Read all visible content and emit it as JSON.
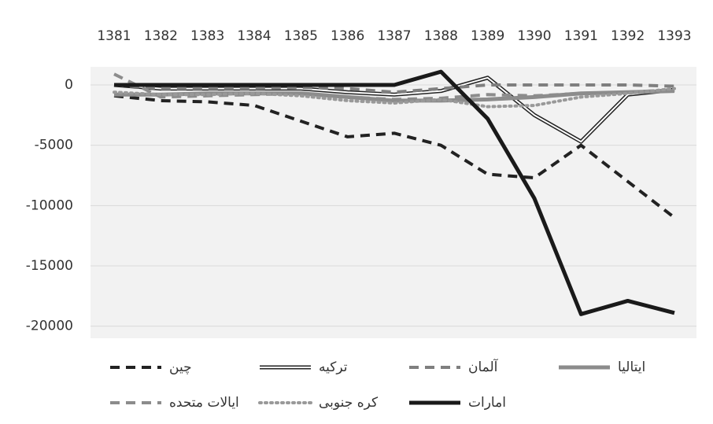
{
  "chart_data": {
    "type": "line",
    "categories": [
      "1381",
      "1382",
      "1383",
      "1384",
      "1385",
      "1386",
      "1387",
      "1388",
      "1389",
      "1390",
      "1391",
      "1392",
      "1393"
    ],
    "ylim": [
      -21000,
      1500
    ],
    "yticks": [
      0,
      -5000,
      -10000,
      -15000,
      -20000
    ],
    "grid": true,
    "series": [
      {
        "name": "چین",
        "color": "#222222",
        "line_style": "dashed",
        "values": [
          -900,
          -1300,
          -1400,
          -1700,
          -3000,
          -4300,
          -4000,
          -5000,
          -7400,
          -7700,
          -5000,
          -8000,
          -11000
        ]
      },
      {
        "name": "ترکیه",
        "color": "#222222",
        "line_style": "double",
        "values": [
          0,
          -300,
          -300,
          -300,
          -300,
          -600,
          -800,
          -500,
          600,
          -2500,
          -4700,
          -800,
          -400
        ]
      },
      {
        "name": "آلمان",
        "color": "#7f7f7f",
        "line_style": "dashed",
        "values": [
          0,
          -300,
          -300,
          -300,
          -200,
          -300,
          -600,
          -300,
          0,
          0,
          0,
          0,
          -100
        ]
      },
      {
        "name": "ایتالیا",
        "color": "#8c8c8c",
        "line_style": "thick",
        "values": [
          -800,
          -800,
          -700,
          -700,
          -700,
          -1000,
          -1300,
          -1300,
          -1200,
          -1000,
          -700,
          -600,
          -500
        ]
      },
      {
        "name": "ایالات متحده",
        "color": "#8c8c8c",
        "line_style": "dashed",
        "values": [
          900,
          -1000,
          -900,
          -800,
          -700,
          -1000,
          -1200,
          -1100,
          -800,
          -900,
          -700,
          -600,
          -400
        ]
      },
      {
        "name": "کره جنوبی",
        "color": "#999999",
        "line_style": "dotted",
        "values": [
          -600,
          -800,
          -800,
          -700,
          -900,
          -1300,
          -1500,
          -1200,
          -1800,
          -1700,
          -1000,
          -700,
          -300
        ]
      },
      {
        "name": "امارات",
        "color": "#1a1a1a",
        "line_style": "thick",
        "values": [
          0,
          0,
          0,
          0,
          0,
          0,
          0,
          1100,
          -2800,
          -9400,
          -19000,
          -17900,
          -18900
        ]
      }
    ]
  }
}
